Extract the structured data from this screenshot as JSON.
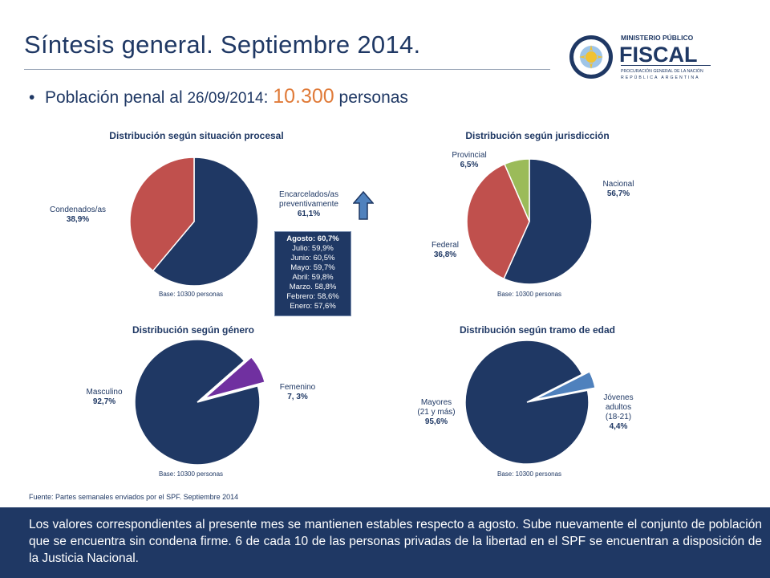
{
  "header": {
    "title": "Síntesis general. Septiembre 2014.",
    "logo_text": [
      "MINISTERIO PÚBLICO",
      "FISCAL",
      "PROCURACIÓN GENERAL DE LA NACIÓN",
      "REPÚBLICA ARGENTINA"
    ]
  },
  "summary": {
    "label_start": "Población penal al ",
    "date": "26/09/2014",
    "colon": ": ",
    "value": "10.300",
    "unit": " personas"
  },
  "colors": {
    "navy": "#1f3864",
    "red": "#c0504d",
    "green": "#9bbb59",
    "purple": "#7030a0",
    "blue": "#4f81bd",
    "orange": "#e07b39"
  },
  "chart_data": [
    {
      "type": "pie",
      "title": "Distribución según situación procesal",
      "base": "Base: 10300 personas",
      "slices": [
        {
          "label": "Encarcelados/as preventivamente",
          "value": 61.1,
          "label_text": "61,1%",
          "color": "#1f3864"
        },
        {
          "label": "Condenados/as",
          "value": 38.9,
          "label_text": "38,9%",
          "color": "#c0504d"
        }
      ]
    },
    {
      "type": "pie",
      "title": "Distribución según jurisdicción",
      "base": "Base: 10300 personas",
      "slices": [
        {
          "label": "Nacional",
          "value": 56.7,
          "label_text": "56,7%",
          "color": "#1f3864"
        },
        {
          "label": "Federal",
          "value": 36.8,
          "label_text": "36,8%",
          "color": "#c0504d"
        },
        {
          "label": "Provincial",
          "value": 6.5,
          "label_text": "6,5%",
          "color": "#9bbb59"
        }
      ]
    },
    {
      "type": "pie",
      "title": "Distribución según género",
      "base": "Base: 10300 personas",
      "slices": [
        {
          "label": "Masculino",
          "value": 92.7,
          "label_text": "92,7%",
          "color": "#1f3864"
        },
        {
          "label": "Femenino",
          "value": 7.3,
          "label_text": "7, 3%",
          "color": "#7030a0"
        }
      ]
    },
    {
      "type": "pie",
      "title": "Distribución según tramo de edad",
      "base": "Base: 10300 personas",
      "slices": [
        {
          "label": "Mayores (21 y más)",
          "value": 95.6,
          "label_text": "95,6%",
          "color": "#1f3864"
        },
        {
          "label": "Jóvenes adultos (18-21)",
          "value": 4.4,
          "label_text": "4,4%",
          "color": "#4f81bd"
        }
      ]
    }
  ],
  "pie_labels": {
    "c1_prev": [
      "Encarcelados/as",
      "preventivamente"
    ],
    "c1_cond": [
      "Condenados/as"
    ],
    "c2_nac": [
      "Nacional"
    ],
    "c2_fed": [
      "Federal"
    ],
    "c2_prov": [
      "Provincial"
    ],
    "c3_masc": [
      "Masculino"
    ],
    "c3_fem": [
      "Femenino"
    ],
    "c4_may": [
      "Mayores",
      "(21 y más)"
    ],
    "c4_jov": [
      "Jóvenes",
      "adultos",
      "(18-21)"
    ]
  },
  "monthly_trend": [
    "Agosto: 60,7%",
    "Julio: 59,9%",
    "Junio: 60,5%",
    "Mayo: 59,7%",
    "Abril: 59,8%",
    "Marzo. 58,8%",
    "Febrero: 58,6%",
    "Enero: 57,6%"
  ],
  "source": "Fuente: Partes semanales enviados por el SPF. Septiembre 2014",
  "footer_text": "Los valores correspondientes al presente mes se mantienen estables respecto a agosto. Sube nuevamente el conjunto de población que se encuentra sin condena firme. 6 de cada 10 de las personas privadas de la libertad en el SPF se encuentran a disposición de la Justicia Nacional."
}
